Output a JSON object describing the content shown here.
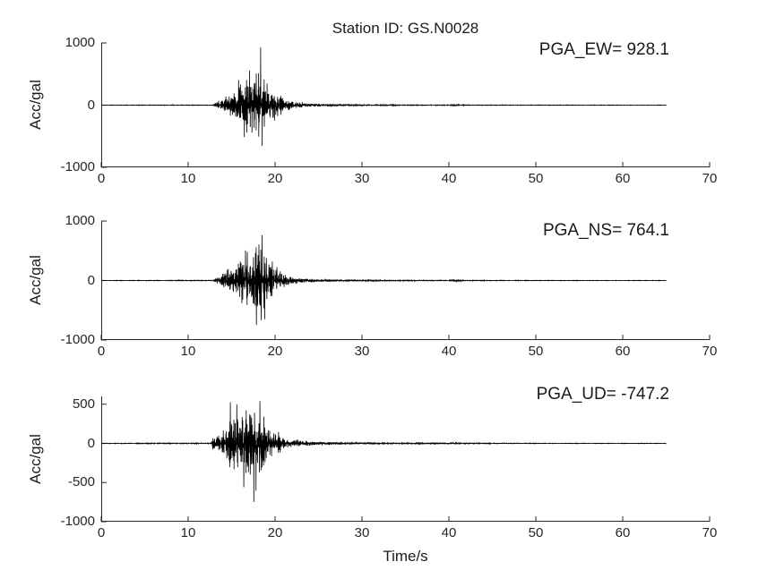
{
  "figure": {
    "title": "Station ID: GS.N0028",
    "xlabel": "Time/s",
    "colors": {
      "background": "#ffffff",
      "trace": "#000000",
      "axis": "#262626",
      "text": "#1a1a1a"
    }
  },
  "chart_data": [
    {
      "type": "line",
      "channel": "EW",
      "pga_label": "PGA_EW= 928.1",
      "pga_value": 928.1,
      "pga_time_s": 18.34,
      "ylabel": "Acc/gal",
      "xlim": [
        0,
        70
      ],
      "ylim": [
        -1000,
        1000
      ],
      "xticks": [
        0,
        10,
        20,
        30,
        40,
        50,
        60,
        70
      ],
      "yticks": [
        1000,
        0,
        -1000
      ],
      "signal_end_s": 65,
      "sample_dt_s": 0.02,
      "noise_seed": 11,
      "envelope_gal": [
        [
          0,
          3
        ],
        [
          12.9,
          5
        ],
        [
          13.2,
          45
        ],
        [
          13.8,
          90
        ],
        [
          14.5,
          140
        ],
        [
          15.2,
          220
        ],
        [
          15.8,
          280
        ],
        [
          16.3,
          330
        ],
        [
          16.8,
          380
        ],
        [
          17.2,
          420
        ],
        [
          17.6,
          370
        ],
        [
          18,
          500
        ],
        [
          18.35,
          640
        ],
        [
          18.7,
          480
        ],
        [
          19,
          390
        ],
        [
          19.4,
          310
        ],
        [
          19.8,
          240
        ],
        [
          20.3,
          170
        ],
        [
          20.8,
          120
        ],
        [
          21.3,
          85
        ],
        [
          21.8,
          62
        ],
        [
          22.5,
          45
        ],
        [
          23.5,
          33
        ],
        [
          24.5,
          26
        ],
        [
          26,
          18
        ],
        [
          28,
          13
        ],
        [
          30,
          10
        ],
        [
          33,
          8
        ],
        [
          36,
          6
        ],
        [
          40,
          5
        ],
        [
          40.6,
          22
        ],
        [
          41,
          16
        ],
        [
          41.5,
          6
        ],
        [
          44,
          5
        ],
        [
          48,
          4
        ],
        [
          52,
          3.5
        ],
        [
          56,
          3
        ],
        [
          60,
          3
        ],
        [
          65,
          3
        ]
      ],
      "spikes_gal": [
        [
          18.34,
          928.1
        ],
        [
          18.52,
          -655
        ],
        [
          17.05,
          555
        ],
        [
          16.45,
          -515
        ],
        [
          15.8,
          405
        ]
      ]
    },
    {
      "type": "line",
      "channel": "NS",
      "pga_label": "PGA_NS= 764.1",
      "pga_value": 764.1,
      "pga_time_s": 18.5,
      "ylabel": "Acc/gal",
      "xlim": [
        0,
        70
      ],
      "ylim": [
        -1000,
        1000
      ],
      "xticks": [
        0,
        10,
        20,
        30,
        40,
        50,
        60,
        70
      ],
      "yticks": [
        1000,
        0,
        -1000
      ],
      "signal_end_s": 65,
      "sample_dt_s": 0.02,
      "noise_seed": 23,
      "envelope_gal": [
        [
          0,
          3
        ],
        [
          12.9,
          5
        ],
        [
          13.2,
          40
        ],
        [
          14,
          100
        ],
        [
          14.8,
          200
        ],
        [
          15.5,
          290
        ],
        [
          16,
          340
        ],
        [
          16.5,
          420
        ],
        [
          17,
          470
        ],
        [
          17.5,
          520
        ],
        [
          18,
          560
        ],
        [
          18.5,
          600
        ],
        [
          18.9,
          500
        ],
        [
          19.3,
          400
        ],
        [
          19.7,
          300
        ],
        [
          20.2,
          200
        ],
        [
          20.7,
          140
        ],
        [
          21.2,
          95
        ],
        [
          21.8,
          65
        ],
        [
          22.5,
          48
        ],
        [
          23.5,
          36
        ],
        [
          24.5,
          28
        ],
        [
          26,
          20
        ],
        [
          28,
          14
        ],
        [
          30,
          10
        ],
        [
          33,
          8
        ],
        [
          36,
          6
        ],
        [
          40,
          5
        ],
        [
          40.7,
          30
        ],
        [
          41,
          35
        ],
        [
          41.4,
          7
        ],
        [
          44,
          5
        ],
        [
          48,
          4
        ],
        [
          55,
          3
        ],
        [
          60,
          3
        ],
        [
          65,
          3
        ]
      ],
      "spikes_gal": [
        [
          18.5,
          764.1
        ],
        [
          17.85,
          -745
        ],
        [
          18.15,
          605
        ],
        [
          18.8,
          -650
        ],
        [
          16.6,
          505
        ]
      ]
    },
    {
      "type": "line",
      "channel": "UD",
      "pga_label": "PGA_UD= -747.2",
      "pga_value": -747.2,
      "pga_time_s": 17.55,
      "ylabel": "Acc/gal",
      "xlim": [
        0,
        70
      ],
      "ylim": [
        -1000,
        600
      ],
      "xticks": [
        0,
        10,
        20,
        30,
        40,
        50,
        60,
        70
      ],
      "yticks": [
        500,
        0,
        -500,
        -1000
      ],
      "signal_end_s": 65,
      "sample_dt_s": 0.02,
      "noise_seed": 37,
      "envelope_gal": [
        [
          0,
          3
        ],
        [
          12.6,
          6
        ],
        [
          12.8,
          70
        ],
        [
          13.2,
          100
        ],
        [
          13.8,
          120
        ],
        [
          14.3,
          160
        ],
        [
          14.8,
          280
        ],
        [
          15.2,
          300
        ],
        [
          15.7,
          260
        ],
        [
          16.2,
          320
        ],
        [
          16.7,
          380
        ],
        [
          17.2,
          420
        ],
        [
          17.6,
          400
        ],
        [
          18,
          430
        ],
        [
          18.3,
          440
        ],
        [
          18.7,
          300
        ],
        [
          19.1,
          250
        ],
        [
          19.6,
          200
        ],
        [
          20,
          150
        ],
        [
          20.5,
          110
        ],
        [
          21,
          80
        ],
        [
          21.5,
          60
        ],
        [
          22,
          50
        ],
        [
          23,
          38
        ],
        [
          24,
          32
        ],
        [
          25,
          26
        ],
        [
          26,
          21
        ],
        [
          27,
          17
        ],
        [
          28,
          14
        ],
        [
          30,
          12
        ],
        [
          32,
          10
        ],
        [
          34,
          8
        ],
        [
          36,
          7
        ],
        [
          38,
          7
        ],
        [
          39.5,
          9
        ],
        [
          40.5,
          9
        ],
        [
          41.5,
          6
        ],
        [
          43,
          5
        ],
        [
          46,
          4
        ],
        [
          50,
          3
        ],
        [
          55,
          3
        ],
        [
          60,
          2.5
        ],
        [
          65,
          2.5
        ]
      ],
      "spikes_gal": [
        [
          17.55,
          -747.2
        ],
        [
          18.25,
          540
        ],
        [
          14.85,
          525
        ],
        [
          17.8,
          -605
        ],
        [
          15.6,
          500
        ],
        [
          16.4,
          -560
        ]
      ]
    }
  ]
}
